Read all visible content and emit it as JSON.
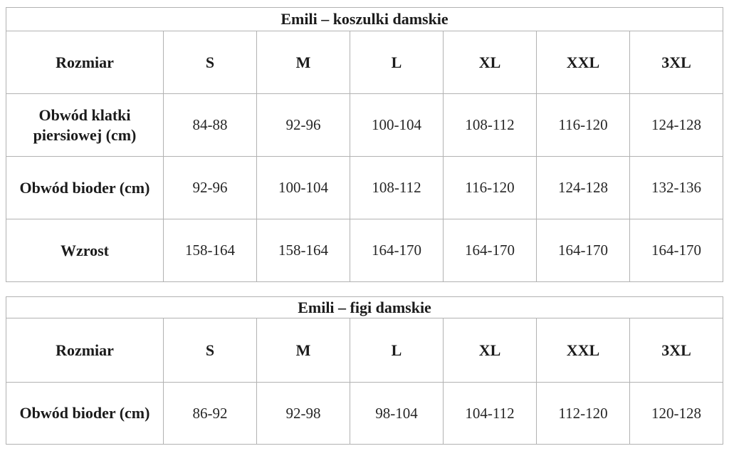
{
  "tables": [
    {
      "title": "Emili – koszulki damskie",
      "headers": [
        "Rozmiar",
        "S",
        "M",
        "L",
        "XL",
        "XXL",
        "3XL"
      ],
      "rows": [
        {
          "label": "Obwód klatki piersiowej (cm)",
          "values": [
            "84-88",
            "92-96",
            "100-104",
            "108-112",
            "116-120",
            "124-128"
          ]
        },
        {
          "label": "Obwód bioder (cm)",
          "values": [
            "92-96",
            "100-104",
            "108-112",
            "116-120",
            "124-128",
            "132-136"
          ]
        },
        {
          "label": "Wzrost",
          "values": [
            "158-164",
            "158-164",
            "164-170",
            "164-170",
            "164-170",
            "164-170"
          ]
        }
      ]
    },
    {
      "title": "Emili – figi damskie",
      "headers": [
        "Rozmiar",
        "S",
        "M",
        "L",
        "XL",
        "XXL",
        "3XL"
      ],
      "rows": [
        {
          "label": "Obwód bioder (cm)",
          "values": [
            "86-92",
            "92-98",
            "98-104",
            "104-112",
            "112-120",
            "120-128"
          ]
        }
      ]
    }
  ],
  "colors": {
    "border": "#b2b2b2",
    "text": "#1b1b1b",
    "background": "#ffffff"
  }
}
